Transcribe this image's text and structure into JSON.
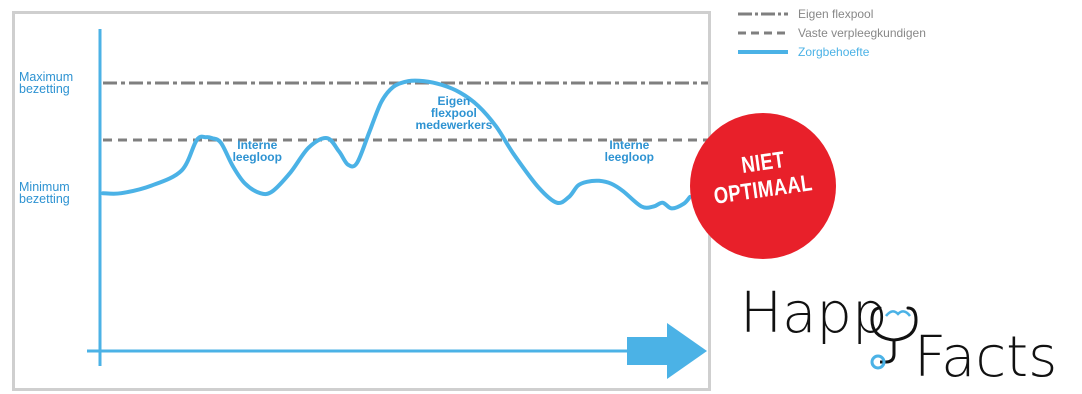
{
  "chart_data": {
    "type": "line",
    "title": "",
    "xlabel": "",
    "ylabel": "",
    "x_range": [
      0,
      100
    ],
    "y_range": [
      0,
      100
    ],
    "y_axis_labels": [
      {
        "text": [
          "Maximum",
          "bezetting"
        ],
        "y": 90
      },
      {
        "text": [
          "Minimum",
          "bezetting"
        ],
        "y": 32
      }
    ],
    "reference_lines": [
      {
        "name": "Eigen flexpool",
        "y": 90,
        "style": "dash-dot",
        "color": "#7f7f7f"
      },
      {
        "name": "Vaste verpleegkundigen",
        "y": 60,
        "style": "dashed",
        "color": "#7f7f7f"
      }
    ],
    "series": [
      {
        "name": "Zorgbehoefte",
        "color": "#4bb2e6",
        "x": [
          0,
          3,
          8,
          13,
          15.5,
          17,
          18,
          19.5,
          21.5,
          23.5,
          26,
          28,
          31,
          34,
          37,
          39,
          40.5,
          42,
          44,
          46,
          48,
          50.5,
          53,
          56,
          59,
          62,
          65,
          68,
          72,
          75,
          77,
          78.5,
          80,
          82,
          84,
          86,
          89,
          91,
          92.5,
          94,
          96,
          97
        ],
        "values": [
          32,
          32,
          36,
          44,
          60,
          61.5,
          61,
          58.5,
          46,
          37,
          32,
          33,
          43,
          56,
          61,
          54,
          47,
          48,
          64,
          80,
          88,
          91,
          91,
          89,
          85,
          78,
          67,
          52,
          35,
          27,
          30,
          36,
          38,
          38.5,
          37,
          33,
          25,
          25,
          27,
          24,
          26.5,
          30
        ]
      }
    ],
    "annotations": [
      {
        "text": [
          "Interne",
          "leegloop"
        ],
        "x": 25.5,
        "y": 54
      },
      {
        "text": [
          "Eigen",
          "flexpool",
          "medewerkers"
        ],
        "x": 58,
        "y": 74
      },
      {
        "text": [
          "Interne",
          "leegloop"
        ],
        "x": 87,
        "y": 54
      }
    ],
    "legend": {
      "position": "top-right"
    },
    "grid": false,
    "arrow_color": "#4bb2e6"
  },
  "legend": [
    {
      "label": "Eigen flexpool",
      "style": "dash-dot",
      "color": "#7f7f7f"
    },
    {
      "label": "Vaste verpleegkundigen",
      "style": "dashed",
      "color": "#7f7f7f"
    },
    {
      "label": "Zorgbehoefte",
      "style": "solid",
      "color": "#4bb2e6"
    }
  ],
  "badge": {
    "line1": "NIET",
    "line2": "OPTIMAAL",
    "color": "#e8202a"
  },
  "logo": {
    "word1": "Happ",
    "word2": "Facts",
    "icon_name": "stethoscope-icon",
    "icon_color": "#4bb2e6"
  }
}
